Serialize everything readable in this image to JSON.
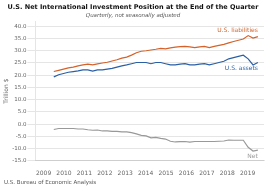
{
  "chart_data": {
    "type": "line",
    "title": "U.S. Net International Investment Position at the End of the Quarter",
    "subtitle": "Quarterly, not seasonally adjusted",
    "y_label": "Trillion $",
    "annotations": [
      "U.S. Bureau of Economic Analysis"
    ],
    "x": [
      2009.5,
      2009.738095,
      2009.97619,
      2010.214286,
      2010.452381,
      2010.690476,
      2010.928571,
      2011.166667,
      2011.404762,
      2011.642857,
      2011.880952,
      2012.119048,
      2012.357143,
      2012.595238,
      2012.833333,
      2013.071429,
      2013.309524,
      2013.547619,
      2013.785714,
      2014.02381,
      2014.261905,
      2014.5,
      2014.738095,
      2014.97619,
      2015.214286,
      2015.452381,
      2015.690476,
      2015.928571,
      2016.166667,
      2016.404762,
      2016.642857,
      2016.880952,
      2017.119048,
      2017.357143,
      2017.595238,
      2017.833333,
      2018.071429,
      2018.309524,
      2018.547619,
      2018.785714,
      2019.02381,
      2019.261905,
      2019.5
    ],
    "series": [
      {
        "name": "U.S. liabilities",
        "color": "#d4622a",
        "values": [
          21.5,
          22.0,
          22.5,
          23.0,
          23.3,
          23.8,
          24.2,
          24.5,
          24.2,
          24.6,
          25.0,
          25.3,
          25.8,
          26.3,
          27.0,
          27.4,
          28.2,
          29.2,
          29.8,
          30.0,
          30.3,
          30.6,
          31.0,
          30.8,
          31.2,
          31.5,
          31.7,
          31.8,
          31.6,
          31.3,
          31.6,
          31.8,
          31.3,
          31.8,
          32.2,
          32.6,
          33.2,
          33.8,
          34.3,
          34.8,
          36.2,
          35.2,
          35.8
        ]
      },
      {
        "name": "U.S. assets",
        "color": "#2a5fa5",
        "values": [
          19.3,
          20.2,
          20.7,
          21.2,
          21.5,
          21.8,
          22.2,
          22.2,
          21.7,
          22.2,
          22.2,
          22.5,
          22.8,
          23.3,
          23.8,
          24.2,
          24.7,
          25.2,
          25.2,
          25.2,
          24.7,
          25.2,
          25.2,
          24.7,
          24.2,
          24.2,
          24.5,
          24.7,
          24.2,
          24.2,
          24.5,
          24.7,
          24.2,
          24.7,
          25.2,
          25.7,
          26.7,
          27.2,
          27.7,
          28.2,
          26.7,
          24.2,
          25.2
        ]
      },
      {
        "name": "Net",
        "color": "#999999",
        "values": [
          -2.2,
          -1.8,
          -1.8,
          -1.8,
          -1.8,
          -2.0,
          -2.0,
          -2.3,
          -2.5,
          -2.4,
          -2.8,
          -2.8,
          -3.0,
          -3.0,
          -3.2,
          -3.2,
          -3.5,
          -4.0,
          -4.6,
          -4.8,
          -5.6,
          -5.4,
          -5.8,
          -6.1,
          -7.0,
          -7.3,
          -7.2,
          -7.1,
          -7.4,
          -7.1,
          -7.1,
          -7.1,
          -7.1,
          -7.1,
          -7.0,
          -6.9,
          -6.5,
          -6.6,
          -6.6,
          -6.6,
          -9.5,
          -11.0,
          -10.6
        ]
      }
    ],
    "xlim": [
      2008.6,
      2019.8
    ],
    "xticks": [
      2009,
      2010,
      2011,
      2012,
      2013,
      2014,
      2015,
      2016,
      2017,
      2018,
      2019
    ],
    "ylim": [
      -15,
      42
    ],
    "yticks": [
      {
        "value": -15,
        "label": "-15.0"
      },
      {
        "value": -10,
        "label": "-10.0"
      },
      {
        "value": -5,
        "label": "-5.0"
      },
      {
        "value": 0,
        "label": "0.0"
      },
      {
        "value": 5,
        "label": "5.0"
      },
      {
        "value": 10,
        "label": "10.0"
      },
      {
        "value": 15,
        "label": "15.0"
      },
      {
        "value": 20,
        "label": "20.0"
      },
      {
        "value": 25,
        "label": "25.0"
      },
      {
        "value": 30,
        "label": "30.0"
      },
      {
        "value": 35,
        "label": "35.0"
      },
      {
        "value": 40,
        "label": "40.0"
      }
    ],
    "grid": "y"
  }
}
